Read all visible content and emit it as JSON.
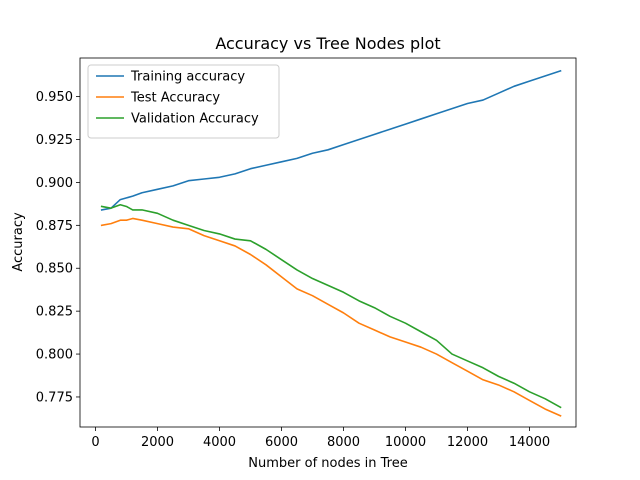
{
  "chart_data": {
    "type": "line",
    "title": "Accuracy vs Tree Nodes plot",
    "xlabel": "Number of nodes in Tree",
    "ylabel": "Accuracy",
    "xlim": [
      -500,
      15500
    ],
    "ylim": [
      0.7575,
      0.9725
    ],
    "xticks": [
      0,
      2000,
      4000,
      6000,
      8000,
      10000,
      12000,
      14000
    ],
    "xtick_labels": [
      "0",
      "2000",
      "4000",
      "6000",
      "8000",
      "10000",
      "12000",
      "14000"
    ],
    "yticks": [
      0.775,
      0.8,
      0.825,
      0.85,
      0.875,
      0.9,
      0.925,
      0.95
    ],
    "ytick_labels": [
      "0.775",
      "0.800",
      "0.825",
      "0.850",
      "0.875",
      "0.900",
      "0.925",
      "0.950"
    ],
    "legend_position": "top-left",
    "grid": false,
    "series": [
      {
        "name": "Training accuracy",
        "color": "#1f77b4",
        "x": [
          200,
          500,
          800,
          1000,
          1200,
          1500,
          2000,
          2500,
          3000,
          3500,
          4000,
          4500,
          5000,
          5500,
          6000,
          6500,
          7000,
          7500,
          8000,
          8500,
          9000,
          9500,
          10000,
          10500,
          11000,
          11500,
          12000,
          12500,
          13000,
          13500,
          14000,
          14500,
          15000
        ],
        "y": [
          0.884,
          0.885,
          0.89,
          0.891,
          0.892,
          0.894,
          0.896,
          0.898,
          0.901,
          0.902,
          0.903,
          0.905,
          0.908,
          0.91,
          0.912,
          0.914,
          0.917,
          0.919,
          0.922,
          0.925,
          0.928,
          0.931,
          0.934,
          0.937,
          0.94,
          0.943,
          0.946,
          0.948,
          0.952,
          0.956,
          0.959,
          0.962,
          0.965
        ]
      },
      {
        "name": "Test Accuracy",
        "color": "#ff7f0e",
        "x": [
          200,
          500,
          800,
          1000,
          1200,
          1500,
          2000,
          2500,
          3000,
          3500,
          4000,
          4500,
          5000,
          5500,
          6000,
          6500,
          7000,
          7500,
          8000,
          8500,
          9000,
          9500,
          10000,
          10500,
          11000,
          11500,
          12000,
          12500,
          13000,
          13500,
          14000,
          14500,
          15000
        ],
        "y": [
          0.875,
          0.876,
          0.878,
          0.878,
          0.879,
          0.878,
          0.876,
          0.874,
          0.873,
          0.869,
          0.866,
          0.863,
          0.858,
          0.852,
          0.845,
          0.838,
          0.834,
          0.829,
          0.824,
          0.818,
          0.814,
          0.81,
          0.807,
          0.804,
          0.8,
          0.795,
          0.79,
          0.785,
          0.782,
          0.778,
          0.773,
          0.768,
          0.764
        ]
      },
      {
        "name": "Validation Accuracy",
        "color": "#2ca02c",
        "x": [
          200,
          500,
          800,
          1000,
          1200,
          1500,
          2000,
          2500,
          3000,
          3500,
          4000,
          4500,
          5000,
          5500,
          6000,
          6500,
          7000,
          7500,
          8000,
          8500,
          9000,
          9500,
          10000,
          10500,
          11000,
          11500,
          12000,
          12500,
          13000,
          13500,
          14000,
          14500,
          15000
        ],
        "y": [
          0.886,
          0.885,
          0.887,
          0.886,
          0.884,
          0.884,
          0.882,
          0.878,
          0.875,
          0.872,
          0.87,
          0.867,
          0.866,
          0.861,
          0.855,
          0.849,
          0.844,
          0.84,
          0.836,
          0.831,
          0.827,
          0.822,
          0.818,
          0.813,
          0.808,
          0.8,
          0.796,
          0.792,
          0.787,
          0.783,
          0.778,
          0.774,
          0.769
        ]
      }
    ]
  }
}
